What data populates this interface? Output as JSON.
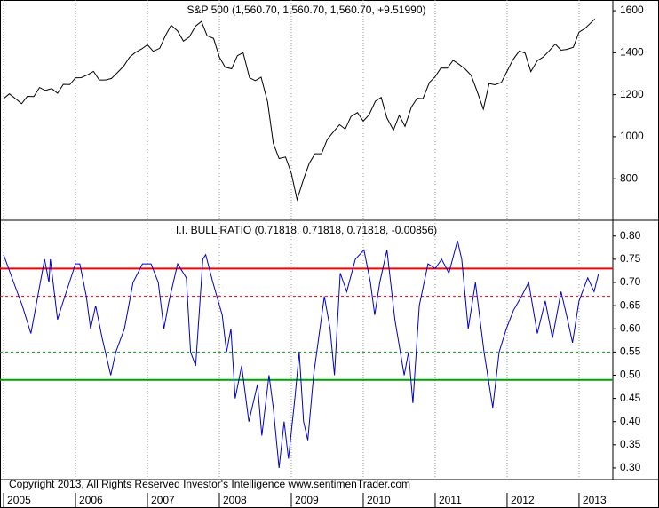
{
  "chart_data": [
    {
      "type": "line",
      "title": "S&P 500 (1,560.70, 1,560.70, 1,560.70, +9.51990)",
      "xlim": [
        2004.95,
        2013.47
      ],
      "ylim": [
        602,
        1651
      ],
      "yticks": [
        800,
        1000,
        1200,
        1400,
        1600
      ],
      "x": [
        2005.0,
        2005.08,
        2005.17,
        2005.25,
        2005.33,
        2005.42,
        2005.5,
        2005.58,
        2005.67,
        2005.75,
        2005.83,
        2005.92,
        2006.0,
        2006.08,
        2006.17,
        2006.25,
        2006.33,
        2006.42,
        2006.5,
        2006.58,
        2006.67,
        2006.75,
        2006.83,
        2006.92,
        2007.0,
        2007.08,
        2007.17,
        2007.25,
        2007.33,
        2007.42,
        2007.5,
        2007.58,
        2007.67,
        2007.75,
        2007.83,
        2007.92,
        2008.0,
        2008.08,
        2008.17,
        2008.25,
        2008.33,
        2008.42,
        2008.5,
        2008.58,
        2008.67,
        2008.75,
        2008.83,
        2008.92,
        2009.0,
        2009.08,
        2009.17,
        2009.25,
        2009.33,
        2009.42,
        2009.5,
        2009.58,
        2009.67,
        2009.75,
        2009.83,
        2009.92,
        2010.0,
        2010.08,
        2010.17,
        2010.25,
        2010.33,
        2010.42,
        2010.5,
        2010.58,
        2010.67,
        2010.75,
        2010.83,
        2010.92,
        2011.0,
        2011.08,
        2011.17,
        2011.25,
        2011.33,
        2011.42,
        2011.5,
        2011.58,
        2011.67,
        2011.75,
        2011.83,
        2011.92,
        2012.0,
        2012.08,
        2012.17,
        2012.25,
        2012.33,
        2012.42,
        2012.5,
        2012.58,
        2012.67,
        2012.75,
        2012.83,
        2012.92,
        2013.0,
        2013.08,
        2013.22
      ],
      "series": [
        {
          "name": "S&P 500",
          "color": "#000000",
          "values": [
            1181,
            1204,
            1180,
            1157,
            1192,
            1191,
            1234,
            1220,
            1229,
            1207,
            1249,
            1248,
            1280,
            1281,
            1295,
            1311,
            1270,
            1270,
            1277,
            1304,
            1336,
            1378,
            1401,
            1418,
            1438,
            1407,
            1421,
            1482,
            1531,
            1503,
            1455,
            1474,
            1527,
            1549,
            1481,
            1468,
            1379,
            1331,
            1323,
            1386,
            1400,
            1280,
            1267,
            1283,
            1166,
            969,
            896,
            903,
            826,
            700,
            798,
            873,
            919,
            919,
            987,
            1021,
            1057,
            1036,
            1096,
            1115,
            1074,
            1104,
            1169,
            1187,
            1089,
            1031,
            1102,
            1049,
            1141,
            1183,
            1181,
            1258,
            1286,
            1327,
            1326,
            1364,
            1345,
            1321,
            1292,
            1219,
            1131,
            1253,
            1247,
            1258,
            1312,
            1366,
            1408,
            1398,
            1310,
            1362,
            1379,
            1407,
            1441,
            1412,
            1416,
            1426,
            1498,
            1515,
            1560.7
          ]
        }
      ]
    },
    {
      "type": "line",
      "title": "I.I. BULL RATIO (0.71818, 0.71818, 0.71818, -0.00856)",
      "annotation": "Copyright 2013, All Rights Reserved  Investor's Intelligence  www.sentimenTrader.com",
      "xlim": [
        2004.95,
        2013.47
      ],
      "xticks": [
        2005,
        2006,
        2007,
        2008,
        2009,
        2010,
        2011,
        2012,
        2013
      ],
      "ylim": [
        0.275,
        0.834
      ],
      "yticks": [
        {
          "value": 0.3,
          "label": "0.30"
        },
        0.35,
        {
          "value": 0.4,
          "label": "0.40"
        },
        0.45,
        {
          "value": 0.5,
          "label": "0.50"
        },
        0.55,
        {
          "value": 0.6,
          "label": "0.60"
        },
        0.65,
        {
          "value": 0.7,
          "label": "0.70"
        },
        0.75,
        {
          "value": 0.8,
          "label": "0.80"
        }
      ],
      "reference_lines": [
        {
          "value": 0.73,
          "color": "#ff0000",
          "style": "solid"
        },
        {
          "value": 0.67,
          "color": "#ff0000",
          "style": "dashed"
        },
        {
          "value": 0.55,
          "color": "#00a000",
          "style": "dashed"
        },
        {
          "value": 0.49,
          "color": "#00a000",
          "style": "solid"
        }
      ],
      "x": [
        2005.0,
        2005.14,
        2005.26,
        2005.38,
        2005.57,
        2005.63,
        2005.65,
        2005.75,
        2005.81,
        2006.0,
        2006.06,
        2006.15,
        2006.21,
        2006.28,
        2006.37,
        2006.49,
        2006.56,
        2006.68,
        2006.8,
        2006.93,
        2007.05,
        2007.15,
        2007.23,
        2007.3,
        2007.42,
        2007.54,
        2007.6,
        2007.67,
        2007.77,
        2007.81,
        2007.91,
        2008.04,
        2008.1,
        2008.16,
        2008.22,
        2008.31,
        2008.41,
        2008.53,
        2008.59,
        2008.69,
        2008.75,
        2008.83,
        2008.9,
        2008.96,
        2009.05,
        2009.11,
        2009.17,
        2009.23,
        2009.31,
        2009.46,
        2009.54,
        2009.6,
        2009.68,
        2009.77,
        2009.89,
        2010.01,
        2010.1,
        2010.16,
        2010.23,
        2010.33,
        2010.44,
        2010.57,
        2010.63,
        2010.69,
        2010.78,
        2010.9,
        2011.0,
        2011.09,
        2011.19,
        2011.31,
        2011.37,
        2011.46,
        2011.56,
        2011.68,
        2011.8,
        2011.89,
        2011.99,
        2012.09,
        2012.2,
        2012.3,
        2012.42,
        2012.53,
        2012.63,
        2012.75,
        2012.84,
        2012.91,
        2013.0,
        2013.12,
        2013.21,
        2013.27
      ],
      "series": [
        {
          "name": "I.I. BULL RATIO",
          "color": "#0000cc",
          "values": [
            0.76,
            0.7,
            0.65,
            0.59,
            0.75,
            0.7,
            0.75,
            0.62,
            0.65,
            0.74,
            0.74,
            0.67,
            0.6,
            0.65,
            0.58,
            0.5,
            0.55,
            0.6,
            0.7,
            0.74,
            0.74,
            0.7,
            0.6,
            0.66,
            0.74,
            0.71,
            0.55,
            0.52,
            0.75,
            0.76,
            0.7,
            0.63,
            0.55,
            0.6,
            0.45,
            0.52,
            0.4,
            0.48,
            0.37,
            0.5,
            0.43,
            0.3,
            0.4,
            0.32,
            0.45,
            0.55,
            0.4,
            0.36,
            0.5,
            0.67,
            0.6,
            0.5,
            0.72,
            0.68,
            0.75,
            0.77,
            0.7,
            0.63,
            0.7,
            0.77,
            0.62,
            0.5,
            0.55,
            0.44,
            0.65,
            0.74,
            0.73,
            0.75,
            0.72,
            0.79,
            0.75,
            0.6,
            0.7,
            0.55,
            0.43,
            0.55,
            0.6,
            0.64,
            0.67,
            0.7,
            0.59,
            0.66,
            0.58,
            0.68,
            0.62,
            0.57,
            0.66,
            0.71,
            0.68,
            0.71818
          ]
        }
      ]
    }
  ]
}
